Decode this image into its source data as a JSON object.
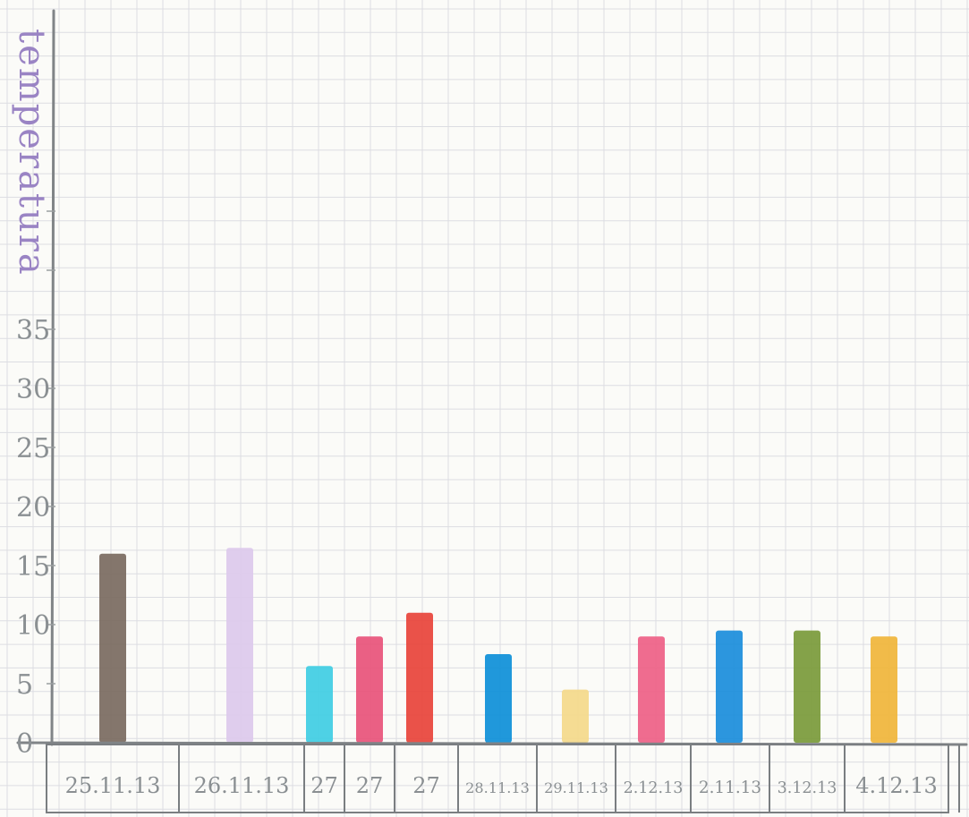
{
  "chart_data": {
    "type": "bar",
    "ylabel": "temperatura",
    "yticks": [
      "0",
      "5",
      "10",
      "15",
      "20",
      "25",
      "30",
      "35"
    ],
    "ylim": [
      0,
      35
    ],
    "grid": true,
    "categories": [
      "25.11.13",
      "26.11.13",
      "27",
      "27",
      "27",
      "28.11.13",
      "29.11.13",
      "2.12.13",
      "2.11.13",
      "3.12.13",
      "4.12.13"
    ],
    "values": [
      16,
      16.5,
      6.5,
      9,
      11,
      7.5,
      4.5,
      9,
      9.5,
      9.5,
      9
    ],
    "colors": [
      "#7a6a60",
      "#dcc9ec",
      "#3fcde3",
      "#e8527a",
      "#e8433a",
      "#0d8fd8",
      "#f4d98a",
      "#ee5f86",
      "#1a8ddb",
      "#7a9a3a",
      "#f0b53a"
    ]
  }
}
